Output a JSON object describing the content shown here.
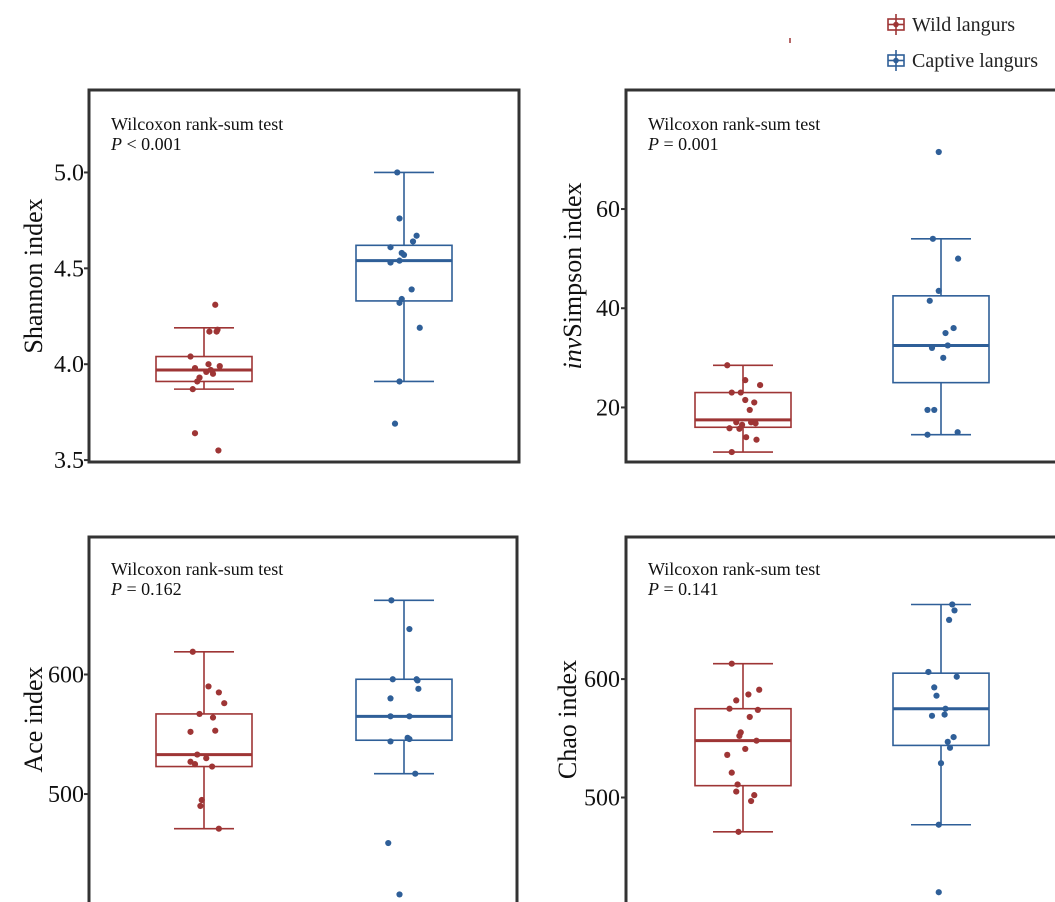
{
  "legend": {
    "items": [
      {
        "label": "Wild langurs",
        "color": "#9e3535"
      },
      {
        "label": "Captive langurs",
        "color": "#2f5f98"
      }
    ]
  },
  "chart_data": [
    {
      "type": "box",
      "ylabel": "Shannon index",
      "ylabel_italic": "",
      "test": "Wilcoxon rank-sum test",
      "p_prefix": "P",
      "p_rest": " < 0.001",
      "yticks": [
        3.5,
        4.0,
        4.5,
        5.0
      ],
      "tick_labels": [
        "3.5",
        "4.0",
        "4.5",
        "5.0"
      ],
      "ylim": [
        3.49,
        5.43
      ],
      "groups": [
        {
          "name": "Wild langurs",
          "color": "#9e3535",
          "whisker_low": 3.87,
          "q1": 3.91,
          "median": 3.97,
          "q3": 4.04,
          "whisker_high": 4.19,
          "points": [
            [
              -0.3,
              4.04
            ],
            [
              0.3,
              4.18
            ],
            [
              -0.2,
              3.98
            ],
            [
              0.1,
              4.0
            ],
            [
              -0.25,
              3.87
            ],
            [
              0.05,
              3.96
            ],
            [
              0.2,
              3.95
            ],
            [
              0.35,
              3.99
            ],
            [
              -0.1,
              3.93
            ],
            [
              0.15,
              3.97
            ],
            [
              0.28,
              4.17
            ],
            [
              0.25,
              4.31
            ],
            [
              -0.15,
              3.91
            ],
            [
              -0.2,
              3.64
            ],
            [
              0.32,
              3.55
            ],
            [
              0.12,
              4.17
            ]
          ]
        },
        {
          "name": "Captive langurs",
          "color": "#2f5f98",
          "whisker_low": 3.91,
          "q1": 4.33,
          "median": 4.54,
          "q3": 4.62,
          "whisker_high": 5.0,
          "points": [
            [
              -0.15,
              5.0
            ],
            [
              -0.1,
              4.76
            ],
            [
              0.28,
              4.67
            ],
            [
              0.2,
              4.64
            ],
            [
              -0.3,
              4.61
            ],
            [
              -0.05,
              4.58
            ],
            [
              0.0,
              4.57
            ],
            [
              -0.1,
              4.54
            ],
            [
              -0.3,
              4.53
            ],
            [
              -0.05,
              4.34
            ],
            [
              -0.1,
              4.32
            ],
            [
              0.17,
              4.39
            ],
            [
              0.35,
              4.19
            ],
            [
              -0.1,
              3.91
            ],
            [
              -0.2,
              3.69
            ]
          ]
        }
      ]
    },
    {
      "type": "box",
      "ylabel": "Simpson index",
      "ylabel_italic": "inv",
      "test": "Wilcoxon rank-sum test",
      "p_prefix": "P",
      "p_rest": " = 0.001",
      "yticks": [
        20,
        40,
        60
      ],
      "tick_labels": [
        "20",
        "40",
        "60"
      ],
      "ylim": [
        9,
        84
      ],
      "groups": [
        {
          "name": "Wild langurs",
          "color": "#9e3535",
          "whisker_low": 11,
          "q1": 16,
          "median": 17.5,
          "q3": 23,
          "whisker_high": 28.5,
          "points": [
            [
              -0.35,
              28.5
            ],
            [
              0.05,
              25.5
            ],
            [
              -0.25,
              23
            ],
            [
              -0.05,
              23
            ],
            [
              0.38,
              24.5
            ],
            [
              0.25,
              21
            ],
            [
              0.05,
              21.5
            ],
            [
              0.15,
              19.5
            ],
            [
              -0.15,
              17
            ],
            [
              -0.02,
              16.5
            ],
            [
              0.18,
              17
            ],
            [
              0.28,
              16.8
            ],
            [
              -0.08,
              15.7
            ],
            [
              0.07,
              14
            ],
            [
              -0.3,
              15.8
            ],
            [
              0.3,
              13.5
            ],
            [
              -0.25,
              11
            ]
          ]
        },
        {
          "name": "Captive langurs",
          "color": "#2f5f98",
          "whisker_low": 14.5,
          "q1": 25,
          "median": 32.5,
          "q3": 42.5,
          "whisker_high": 54,
          "points": [
            [
              -0.05,
              71.5
            ],
            [
              -0.18,
              54
            ],
            [
              0.38,
              50
            ],
            [
              -0.05,
              43.5
            ],
            [
              -0.25,
              41.5
            ],
            [
              0.28,
              36
            ],
            [
              0.1,
              35
            ],
            [
              -0.2,
              32
            ],
            [
              0.15,
              32.5
            ],
            [
              0.05,
              30
            ],
            [
              -0.3,
              19.5
            ],
            [
              -0.15,
              19.5
            ],
            [
              0.37,
              15
            ],
            [
              -0.3,
              14.5
            ]
          ]
        }
      ]
    },
    {
      "type": "box",
      "ylabel": "Ace index",
      "ylabel_italic": "",
      "test": "Wilcoxon rank-sum test",
      "p_prefix": "P",
      "p_rest": " = 0.162",
      "yticks": [
        500,
        600
      ],
      "tick_labels": [
        "500",
        "600"
      ],
      "ylim": [
        403,
        715
      ],
      "groups": [
        {
          "name": "Wild langurs",
          "color": "#9e3535",
          "whisker_low": 471,
          "q1": 523,
          "median": 533,
          "q3": 567,
          "whisker_high": 619,
          "points": [
            [
              -0.25,
              619
            ],
            [
              0.1,
              590
            ],
            [
              0.33,
              585
            ],
            [
              0.45,
              576
            ],
            [
              -0.3,
              552
            ],
            [
              -0.1,
              567
            ],
            [
              0.2,
              564
            ],
            [
              0.25,
              553
            ],
            [
              -0.15,
              533
            ],
            [
              0.05,
              530
            ],
            [
              -0.3,
              527
            ],
            [
              -0.2,
              525
            ],
            [
              0.18,
              523
            ],
            [
              -0.05,
              495
            ],
            [
              -0.08,
              490
            ],
            [
              0.33,
              471
            ]
          ]
        },
        {
          "name": "Captive langurs",
          "color": "#2f5f98",
          "whisker_low": 517,
          "q1": 545,
          "median": 565,
          "q3": 596,
          "whisker_high": 662,
          "points": [
            [
              -0.28,
              662
            ],
            [
              0.12,
              638
            ],
            [
              -0.25,
              596
            ],
            [
              0.28,
              596
            ],
            [
              0.3,
              595
            ],
            [
              0.32,
              588
            ],
            [
              -0.3,
              580
            ],
            [
              -0.3,
              565
            ],
            [
              0.12,
              565
            ],
            [
              0.08,
              547
            ],
            [
              0.12,
              546
            ],
            [
              -0.3,
              544
            ],
            [
              0.25,
              517
            ],
            [
              -0.35,
              459
            ],
            [
              -0.1,
              416
            ]
          ]
        }
      ]
    },
    {
      "type": "box",
      "ylabel": "Chao index",
      "ylabel_italic": "",
      "test": "Wilcoxon rank-sum test",
      "p_prefix": "P",
      "p_rest": " = 0.141",
      "yticks": [
        500,
        600
      ],
      "tick_labels": [
        "500",
        "600"
      ],
      "ylim": [
        405,
        720
      ],
      "groups": [
        {
          "name": "Wild langurs",
          "color": "#9e3535",
          "whisker_low": 471,
          "q1": 510,
          "median": 548,
          "q3": 575,
          "whisker_high": 613,
          "points": [
            [
              -0.25,
              613
            ],
            [
              0.12,
              587
            ],
            [
              0.36,
              591
            ],
            [
              -0.15,
              582
            ],
            [
              0.33,
              574
            ],
            [
              -0.3,
              575
            ],
            [
              0.15,
              568
            ],
            [
              -0.05,
              555
            ],
            [
              -0.08,
              552
            ],
            [
              0.3,
              548
            ],
            [
              -0.35,
              536
            ],
            [
              0.05,
              541
            ],
            [
              -0.25,
              521
            ],
            [
              -0.12,
              511
            ],
            [
              0.25,
              502
            ],
            [
              0.18,
              497
            ],
            [
              -0.15,
              505
            ],
            [
              -0.1,
              471
            ]
          ]
        },
        {
          "name": "Captive langurs",
          "color": "#2f5f98",
          "whisker_low": 477,
          "q1": 544,
          "median": 575,
          "q3": 605,
          "whisker_high": 663,
          "points": [
            [
              0.25,
              663
            ],
            [
              0.3,
              658
            ],
            [
              0.18,
              650
            ],
            [
              -0.28,
              606
            ],
            [
              0.35,
              602
            ],
            [
              -0.15,
              593
            ],
            [
              -0.1,
              586
            ],
            [
              0.1,
              575
            ],
            [
              -0.2,
              569
            ],
            [
              0.08,
              570
            ],
            [
              0.15,
              547
            ],
            [
              0.2,
              542
            ],
            [
              0.28,
              551
            ],
            [
              0.0,
              529
            ],
            [
              -0.05,
              477
            ],
            [
              -0.05,
              420
            ]
          ]
        }
      ]
    }
  ]
}
